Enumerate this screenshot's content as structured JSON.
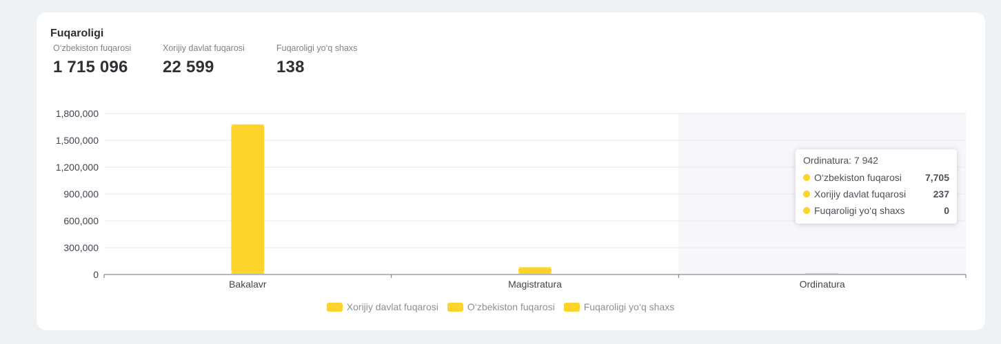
{
  "card": {
    "title": "Fuqaroligi"
  },
  "stats": [
    {
      "label": "O‘zbekiston fuqarosi",
      "value": "1 715 096"
    },
    {
      "label": "Xorijiy davlat fuqarosi",
      "value": "22 599"
    },
    {
      "label": "Fuqaroligi yo‘q shaxs",
      "value": "138"
    }
  ],
  "tooltip": {
    "title": "Ordinatura: 7 942",
    "rows": [
      {
        "name": "O‘zbekiston fuqarosi",
        "value": "7,705"
      },
      {
        "name": "Xorijiy davlat fuqarosi",
        "value": "237"
      },
      {
        "name": "Fuqaroligi yo‘q shaxs",
        "value": "0"
      }
    ]
  },
  "legend": [
    "Xorijiy davlat fuqarosi",
    "O‘zbekiston fuqarosi",
    "Fuqaroligi yo‘q shaxs"
  ],
  "colors": {
    "series": "#fbd32a",
    "hover_band": "#f5f7fb",
    "grid": "#e6e8eb",
    "axis": "#6e7079"
  },
  "chart_data": {
    "type": "bar",
    "stacked": true,
    "categories": [
      "Bakalavr",
      "Magistratura",
      "Ordinatura"
    ],
    "series": [
      {
        "name": "Xorijiy davlat fuqarosi",
        "values": [
          20000,
          2362,
          237
        ]
      },
      {
        "name": "O‘zbekiston fuqarosi",
        "values": [
          1643000,
          64391,
          7705
        ]
      },
      {
        "name": "Fuqaroligi yo‘q shaxs",
        "values": [
          130,
          8,
          0
        ]
      }
    ],
    "ylim": [
      0,
      1800000
    ],
    "yticks": [
      0,
      300000,
      600000,
      900000,
      1200000,
      1500000,
      1800000
    ],
    "ytick_labels": [
      "0",
      "300,000",
      "600,000",
      "900,000",
      "1,200,000",
      "1,500,000",
      "1,800,000"
    ],
    "grid": true,
    "legend_position": "bottom",
    "highlighted_category": "Ordinatura"
  }
}
